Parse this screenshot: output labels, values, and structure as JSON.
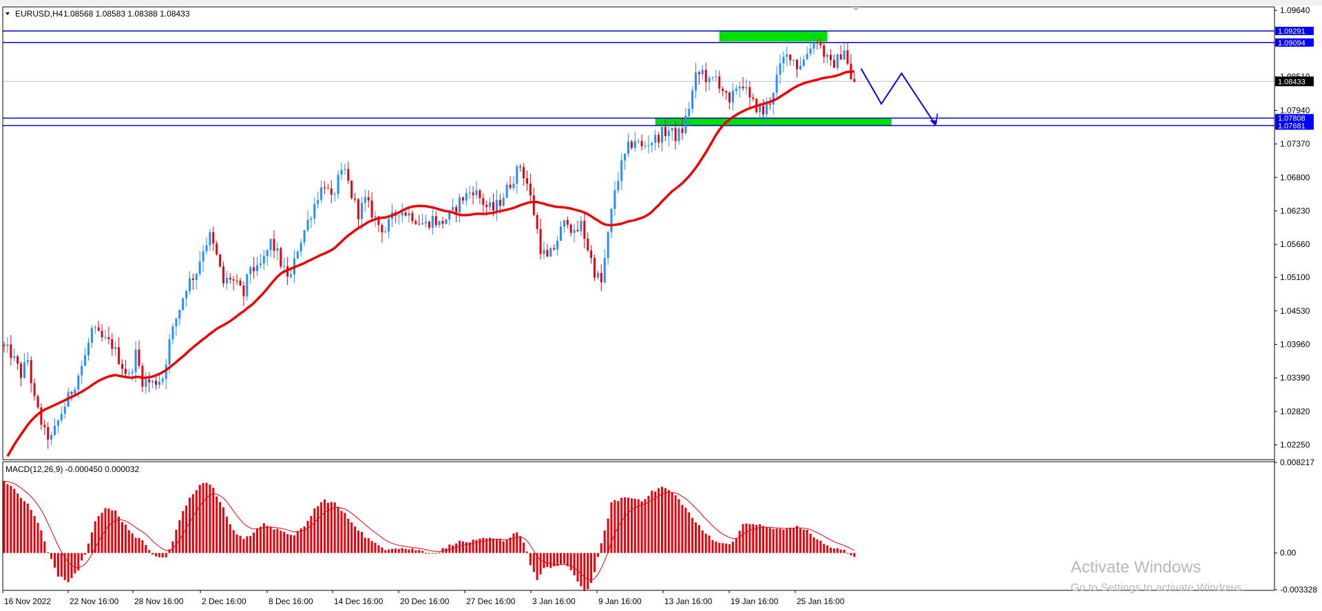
{
  "main_header": {
    "symbol": "EURUSD,H4",
    "ohlc": "1.08568 1.08583 1.08388 1.08433"
  },
  "macd_header": {
    "title": "MACD(12,26,9) -0.000450 0.000032"
  },
  "watermark": {
    "line1": "Activate Windows",
    "line2": "Go to Settings to activate Windows."
  },
  "colors": {
    "bull": "#1e90ff",
    "bear": "#e8000b",
    "ma": "#ee0000",
    "level": "#0000cc",
    "zone": "#00e000",
    "macd_hist": "#e8000b",
    "macd_signal": "#e8000b",
    "arrow": "#0000ff"
  },
  "chart_data": [
    {
      "type": "candlestick",
      "symbol": "EURUSD",
      "timeframe": "H4",
      "y_ticks": [
        "1.09640",
        "1.09070",
        "1.08510",
        "1.07940",
        "1.07370",
        "1.06800",
        "1.06230",
        "1.05660",
        "1.05100",
        "1.04530",
        "1.03960",
        "1.03390",
        "1.02820",
        "1.02250"
      ],
      "ylim": [
        1.02,
        1.097
      ],
      "x_ticks": [
        "16 Nov 2022",
        "22 Nov 16:00",
        "28 Nov 16:00",
        "2 Dec 16:00",
        "8 Dec 16:00",
        "14 Dec 16:00",
        "20 Dec 16:00",
        "27 Dec 16:00",
        "3 Jan 16:00",
        "9 Jan 16:00",
        "13 Jan 16:00",
        "19 Jan 16:00",
        "25 Jan 16:00"
      ],
      "bars_total": 253,
      "price_path": [
        [
          0,
          1.0395
        ],
        [
          3,
          1.038
        ],
        [
          6,
          1.0345
        ],
        [
          8,
          1.037
        ],
        [
          10,
          1.03
        ],
        [
          13,
          1.0245
        ],
        [
          15,
          1.0235
        ],
        [
          18,
          1.028
        ],
        [
          22,
          1.033
        ],
        [
          25,
          1.0375
        ],
        [
          27,
          1.042
        ],
        [
          30,
          1.0405
        ],
        [
          33,
          1.0395
        ],
        [
          36,
          1.036
        ],
        [
          38,
          1.034
        ],
        [
          40,
          1.038
        ],
        [
          42,
          1.0335
        ],
        [
          45,
          1.033
        ],
        [
          48,
          1.034
        ],
        [
          50,
          1.04
        ],
        [
          52,
          1.044
        ],
        [
          55,
          1.0495
        ],
        [
          58,
          1.052
        ],
        [
          60,
          1.056
        ],
        [
          62,
          1.058
        ],
        [
          64,
          1.0545
        ],
        [
          66,
          1.05
        ],
        [
          68,
          1.051
        ],
        [
          70,
          1.0495
        ],
        [
          72,
          1.048
        ],
        [
          74,
          1.053
        ],
        [
          76,
          1.052
        ],
        [
          78,
          1.054
        ],
        [
          80,
          1.057
        ],
        [
          82,
          1.055
        ],
        [
          84,
          1.052
        ],
        [
          86,
          1.051
        ],
        [
          88,
          1.056
        ],
        [
          90,
          1.059
        ],
        [
          92,
          1.062
        ],
        [
          94,
          1.065
        ],
        [
          96,
          1.067
        ],
        [
          98,
          1.064
        ],
        [
          100,
          1.0675
        ],
        [
          102,
          1.069
        ],
        [
          104,
          1.065
        ],
        [
          106,
          1.062
        ],
        [
          108,
          1.064
        ],
        [
          110,
          1.062
        ],
        [
          112,
          1.06
        ],
        [
          114,
          1.059
        ],
        [
          116,
          1.061
        ],
        [
          118,
          1.0625
        ],
        [
          120,
          1.062
        ],
        [
          122,
          1.0615
        ],
        [
          124,
          1.0605
        ],
        [
          126,
          1.06
        ],
        [
          128,
          1.061
        ],
        [
          130,
          1.06
        ],
        [
          132,
          1.061
        ],
        [
          134,
          1.062
        ],
        [
          136,
          1.064
        ],
        [
          138,
          1.065
        ],
        [
          140,
          1.066
        ],
        [
          142,
          1.0645
        ],
        [
          144,
          1.063
        ],
        [
          146,
          1.0625
        ],
        [
          148,
          1.064
        ],
        [
          150,
          1.066
        ],
        [
          152,
          1.068
        ],
        [
          154,
          1.07
        ],
        [
          156,
          1.067
        ],
        [
          158,
          1.062
        ],
        [
          160,
          1.056
        ],
        [
          162,
          1.054
        ],
        [
          164,
          1.056
        ],
        [
          166,
          1.059
        ],
        [
          168,
          1.061
        ],
        [
          170,
          1.058
        ],
        [
          172,
          1.06
        ],
        [
          174,
          1.056
        ],
        [
          176,
          1.052
        ],
        [
          178,
          1.05
        ],
        [
          180,
          1.058
        ],
        [
          182,
          1.066
        ],
        [
          184,
          1.07
        ],
        [
          186,
          1.073
        ],
        [
          188,
          1.0745
        ],
        [
          190,
          1.073
        ],
        [
          192,
          1.074
        ],
        [
          194,
          1.0745
        ],
        [
          196,
          1.0755
        ],
        [
          198,
          1.076
        ],
        [
          200,
          1.075
        ],
        [
          202,
          1.076
        ],
        [
          204,
          1.08
        ],
        [
          206,
          1.085
        ],
        [
          208,
          1.086
        ],
        [
          210,
          1.084
        ],
        [
          212,
          1.085
        ],
        [
          214,
          1.083
        ],
        [
          216,
          1.08
        ],
        [
          218,
          1.0835
        ],
        [
          220,
          1.084
        ],
        [
          222,
          1.081
        ],
        [
          224,
          1.08
        ],
        [
          226,
          1.079
        ],
        [
          228,
          1.081
        ],
        [
          230,
          1.085
        ],
        [
          232,
          1.088
        ],
        [
          234,
          1.089
        ],
        [
          236,
          1.087
        ],
        [
          238,
          1.088
        ],
        [
          240,
          1.0905
        ],
        [
          242,
          1.0915
        ],
        [
          244,
          1.089
        ],
        [
          246,
          1.087
        ],
        [
          248,
          1.088
        ],
        [
          250,
          1.09
        ],
        [
          252,
          1.0843
        ]
      ],
      "last_price": "1.08433",
      "moving_average": "red line, smoothed trend of price",
      "horizontal_levels": [
        {
          "value": 1.09291,
          "label": "1.09291"
        },
        {
          "value": 1.09094,
          "label": "1.09094"
        },
        {
          "value": 1.07808,
          "label": "1.07808"
        },
        {
          "value": 1.07681,
          "label": "1.07681"
        }
      ],
      "zones": [
        {
          "name": "resistance",
          "y_top": 1.0929,
          "y_bottom": 1.0911,
          "x_from_bar": 212,
          "x_to_bar": 244
        },
        {
          "name": "support",
          "y_top": 1.0781,
          "y_bottom": 1.0768,
          "x_from_bar": 193,
          "x_to_bar": 263
        }
      ],
      "projection": [
        [
          254,
          1.0865
        ],
        [
          260,
          1.0805
        ],
        [
          266,
          1.0857
        ],
        [
          276,
          1.077
        ]
      ]
    },
    {
      "type": "bar",
      "name": "MACD(12,26,9)",
      "main": -0.00045,
      "signal": 3.2e-05,
      "y_ticks": [
        "0.008217",
        "0.00",
        "-0.003328"
      ],
      "ylim": [
        -0.003328,
        0.008217
      ],
      "histogram_path": [
        [
          0,
          0.0065
        ],
        [
          4,
          0.0055
        ],
        [
          8,
          0.004
        ],
        [
          11,
          0.002
        ],
        [
          13,
          0.0
        ],
        [
          16,
          -0.002
        ],
        [
          19,
          -0.0025
        ],
        [
          22,
          -0.0015
        ],
        [
          24,
          0.0
        ],
        [
          27,
          0.003
        ],
        [
          30,
          0.004
        ],
        [
          33,
          0.0038
        ],
        [
          36,
          0.0025
        ],
        [
          39,
          0.0015
        ],
        [
          42,
          0.0008
        ],
        [
          44,
          0.0
        ],
        [
          46,
          -0.0005
        ],
        [
          48,
          -0.0003
        ],
        [
          50,
          0.001
        ],
        [
          52,
          0.003
        ],
        [
          55,
          0.005
        ],
        [
          58,
          0.0062
        ],
        [
          60,
          0.0065
        ],
        [
          62,
          0.0058
        ],
        [
          65,
          0.004
        ],
        [
          68,
          0.002
        ],
        [
          71,
          0.0013
        ],
        [
          74,
          0.0018
        ],
        [
          77,
          0.0028
        ],
        [
          80,
          0.0022
        ],
        [
          83,
          0.0018
        ],
        [
          86,
          0.0017
        ],
        [
          89,
          0.0023
        ],
        [
          92,
          0.004
        ],
        [
          95,
          0.0048
        ],
        [
          98,
          0.0045
        ],
        [
          101,
          0.0035
        ],
        [
          104,
          0.0025
        ],
        [
          107,
          0.0015
        ],
        [
          110,
          0.0008
        ],
        [
          113,
          0.0004
        ],
        [
          116,
          0.0005
        ],
        [
          119,
          0.0004
        ],
        [
          122,
          0.0003
        ],
        [
          125,
          0.0001
        ],
        [
          128,
          0.0
        ],
        [
          131,
          0.0005
        ],
        [
          134,
          0.001
        ],
        [
          137,
          0.001
        ],
        [
          140,
          0.0011
        ],
        [
          143,
          0.0013
        ],
        [
          146,
          0.0012
        ],
        [
          149,
          0.0012
        ],
        [
          152,
          0.002
        ],
        [
          154,
          0.001
        ],
        [
          156,
          -0.001
        ],
        [
          158,
          -0.0025
        ],
        [
          160,
          -0.0015
        ],
        [
          163,
          -0.0012
        ],
        [
          166,
          -0.001
        ],
        [
          169,
          -0.002
        ],
        [
          172,
          -0.0035
        ],
        [
          174,
          -0.0028
        ],
        [
          176,
          -0.0005
        ],
        [
          178,
          0.002
        ],
        [
          180,
          0.0045
        ],
        [
          183,
          0.005
        ],
        [
          186,
          0.005
        ],
        [
          189,
          0.0048
        ],
        [
          192,
          0.0055
        ],
        [
          195,
          0.006
        ],
        [
          198,
          0.0055
        ],
        [
          201,
          0.0045
        ],
        [
          204,
          0.0032
        ],
        [
          207,
          0.002
        ],
        [
          210,
          0.0013
        ],
        [
          213,
          0.0008
        ],
        [
          216,
          0.001
        ],
        [
          219,
          0.0025
        ],
        [
          222,
          0.0027
        ],
        [
          225,
          0.0024
        ],
        [
          228,
          0.0022
        ],
        [
          231,
          0.0021
        ],
        [
          234,
          0.0024
        ],
        [
          237,
          0.0022
        ],
        [
          240,
          0.0015
        ],
        [
          243,
          0.0008
        ],
        [
          246,
          0.0004
        ],
        [
          249,
          0.0002
        ],
        [
          252,
          -0.00045
        ]
      ]
    }
  ]
}
